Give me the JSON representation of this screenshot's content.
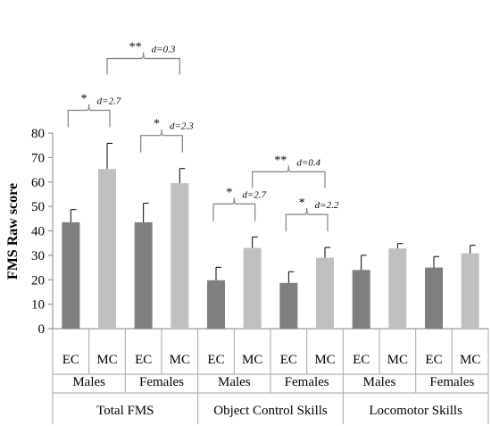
{
  "chart_data": {
    "type": "bar",
    "ylabel": "FMS Raw score",
    "ylim": [
      0,
      80
    ],
    "yticks": [
      0,
      10,
      20,
      30,
      40,
      50,
      60,
      70,
      80
    ],
    "grid": false,
    "bars": [
      {
        "label": "EC",
        "group": "Males",
        "domain": "Total FMS",
        "value": 43.5,
        "error": 5.2
      },
      {
        "label": "MC",
        "group": "Males",
        "domain": "Total FMS",
        "value": 65.3,
        "error": 10.5
      },
      {
        "label": "EC",
        "group": "Females",
        "domain": "Total FMS",
        "value": 43.5,
        "error": 7.8
      },
      {
        "label": "MC",
        "group": "Females",
        "domain": "Total FMS",
        "value": 59.5,
        "error": 6.0
      },
      {
        "label": "EC",
        "group": "Males",
        "domain": "Object Control Skills",
        "value": 19.8,
        "error": 5.3
      },
      {
        "label": "MC",
        "group": "Males",
        "domain": "Object Control Skills",
        "value": 33.0,
        "error": 4.5
      },
      {
        "label": "EC",
        "group": "Females",
        "domain": "Object Control Skills",
        "value": 18.7,
        "error": 4.6
      },
      {
        "label": "MC",
        "group": "Females",
        "domain": "Object Control Skills",
        "value": 29.0,
        "error": 4.2
      },
      {
        "label": "EC",
        "group": "Males",
        "domain": "Locomotor Skills",
        "value": 24.0,
        "error": 6.0
      },
      {
        "label": "MC",
        "group": "Males",
        "domain": "Locomotor Skills",
        "value": 32.8,
        "error": 2.0
      },
      {
        "label": "EC",
        "group": "Females",
        "domain": "Locomotor Skills",
        "value": 25.0,
        "error": 4.5
      },
      {
        "label": "MC",
        "group": "Females",
        "domain": "Locomotor Skills",
        "value": 30.8,
        "error": 3.3
      }
    ],
    "groups": [
      {
        "label": "Males",
        "bars": [
          0,
          1
        ]
      },
      {
        "label": "Females",
        "bars": [
          2,
          3
        ]
      },
      {
        "label": "Males",
        "bars": [
          4,
          5
        ]
      },
      {
        "label": "Females",
        "bars": [
          6,
          7
        ]
      },
      {
        "label": "Males",
        "bars": [
          8,
          9
        ]
      },
      {
        "label": "Females",
        "bars": [
          10,
          11
        ]
      }
    ],
    "domains": [
      {
        "label": "Total FMS",
        "groups": [
          0,
          1
        ]
      },
      {
        "label": "Object Control Skills",
        "groups": [
          2,
          3
        ]
      },
      {
        "label": "Locomotor Skills",
        "groups": [
          4,
          5
        ]
      }
    ],
    "colors": {
      "EC": "#7f7f7f",
      "MC": "#bfbfbf"
    },
    "annotations": [
      {
        "stars": "*",
        "effect": "d=2.7",
        "bars": [
          0,
          1
        ]
      },
      {
        "stars": "*",
        "effect": "d=2.3",
        "bars": [
          2,
          3
        ]
      },
      {
        "stars": "**",
        "effect": "d=0.3",
        "bars": [
          1,
          3
        ]
      },
      {
        "stars": "*",
        "effect": "d=2.7",
        "bars": [
          4,
          5
        ]
      },
      {
        "stars": "*",
        "effect": "d=2.2",
        "bars": [
          6,
          7
        ]
      },
      {
        "stars": "**",
        "effect": "d=0.4",
        "bars": [
          5,
          7
        ]
      }
    ]
  }
}
